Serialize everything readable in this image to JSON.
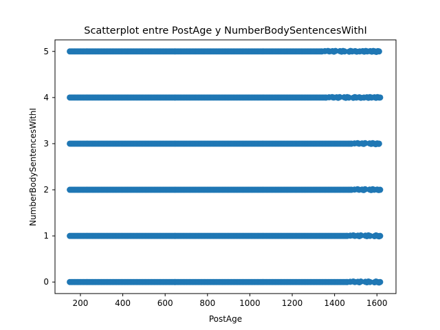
{
  "chart_data": {
    "type": "scatter",
    "title": "Scatterplot entre PostAge y NumberBodySentencesWithI",
    "xlabel": "PostAge",
    "ylabel": "NumberBodySentencesWithI",
    "xlim": [
      80,
      1690
    ],
    "ylim": [
      -0.25,
      5.25
    ],
    "xticks": [
      200,
      400,
      600,
      800,
      1000,
      1200,
      1400,
      1600
    ],
    "yticks": [
      0,
      1,
      2,
      3,
      4,
      5
    ],
    "grid": false,
    "legend": "none",
    "series_color": "#1f77b4",
    "rows": [
      {
        "y": 0,
        "x_min": 150,
        "x_max": 1615,
        "sparse_from": 1460
      },
      {
        "y": 1,
        "x_min": 150,
        "x_max": 1615,
        "sparse_from": 1460
      },
      {
        "y": 2,
        "x_min": 150,
        "x_max": 1615,
        "sparse_from": 1480
      },
      {
        "y": 3,
        "x_min": 150,
        "x_max": 1610,
        "sparse_from": 1480
      },
      {
        "y": 4,
        "x_min": 150,
        "x_max": 1615,
        "sparse_from": 1360
      },
      {
        "y": 5,
        "x_min": 150,
        "x_max": 1610,
        "sparse_from": 1340
      }
    ]
  }
}
